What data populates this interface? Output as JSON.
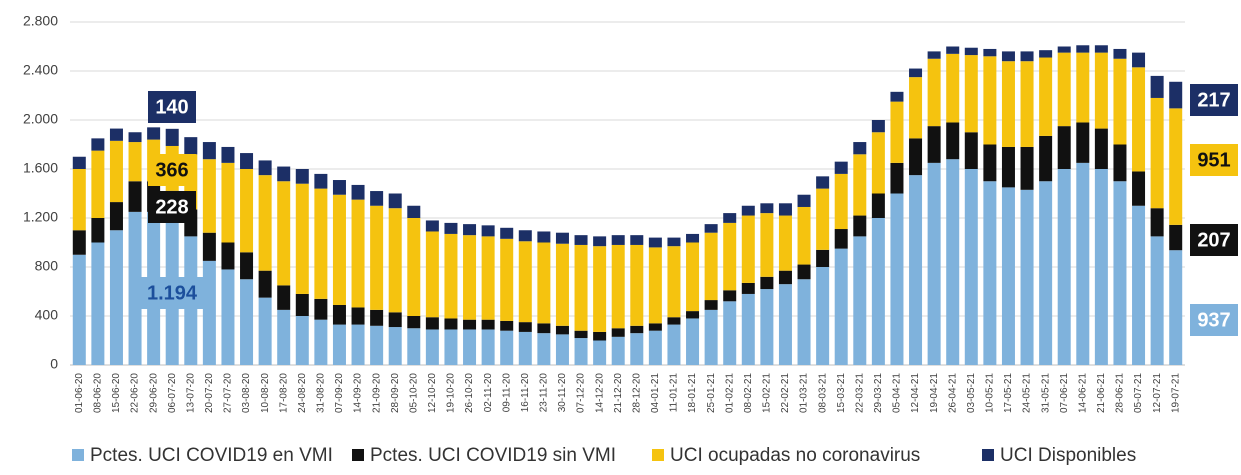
{
  "chart_data": {
    "type": "bar",
    "stacked": true,
    "grid": true,
    "categories": [
      "01-06-20",
      "08-06-20",
      "15-06-20",
      "22-06-20",
      "29-06-20",
      "06-07-20",
      "13-07-20",
      "20-07-20",
      "27-07-20",
      "03-08-20",
      "10-08-20",
      "17-08-20",
      "24-08-20",
      "31-08-20",
      "07-09-20",
      "14-09-20",
      "21-09-20",
      "28-09-20",
      "05-10-20",
      "12-10-20",
      "19-10-20",
      "26-10-20",
      "02-11-20",
      "09-11-20",
      "16-11-20",
      "23-11-20",
      "30-11-20",
      "07-12-20",
      "14-12-20",
      "21-12-20",
      "28-12-20",
      "04-01-21",
      "11-01-21",
      "18-01-21",
      "25-01-21",
      "01-02-21",
      "08-02-21",
      "15-02-21",
      "22-02-21",
      "01-03-21",
      "08-03-21",
      "15-03-21",
      "22-03-21",
      "29-03-21",
      "05-04-21",
      "12-04-21",
      "19-04-21",
      "26-04-21",
      "03-05-21",
      "10-05-21",
      "17-05-21",
      "24-05-21",
      "31-05-21",
      "07-06-21",
      "14-06-21",
      "21-06-21",
      "28-06-21",
      "05-07-21",
      "12-07-21",
      "19-07-21"
    ],
    "series": [
      {
        "name": "Pctes. UCI COVID19 en VMI",
        "color": "#7fb2dc",
        "label_color": "#ffffff",
        "values": [
          900,
          1000,
          1100,
          1250,
          1250,
          1194,
          1050,
          850,
          780,
          700,
          550,
          450,
          400,
          370,
          330,
          330,
          320,
          310,
          300,
          290,
          290,
          290,
          290,
          280,
          270,
          260,
          250,
          220,
          200,
          230,
          260,
          280,
          330,
          380,
          450,
          520,
          580,
          620,
          660,
          700,
          800,
          950,
          1050,
          1200,
          1400,
          1550,
          1650,
          1680,
          1600,
          1500,
          1450,
          1430,
          1500,
          1600,
          1650,
          1600,
          1500,
          1300,
          1050,
          937
        ],
        "value_labels": [
          null,
          null,
          null,
          null,
          null,
          "1.194",
          null,
          null,
          null,
          null,
          null,
          null,
          null,
          null,
          null,
          null,
          null,
          null,
          null,
          null,
          null,
          null,
          null,
          null,
          null,
          null,
          null,
          null,
          null,
          null,
          null,
          null,
          null,
          null,
          null,
          null,
          null,
          null,
          null,
          null,
          null,
          null,
          null,
          null,
          null,
          null,
          null,
          null,
          null,
          null,
          null,
          null,
          null,
          null,
          null,
          null,
          null,
          null,
          null,
          "937"
        ]
      },
      {
        "name": "Pctes. UCI COVID19 sin VMI",
        "color": "#111111",
        "label_color": "#ffffff",
        "values": [
          200,
          200,
          230,
          250,
          250,
          228,
          220,
          230,
          220,
          220,
          220,
          200,
          180,
          170,
          160,
          140,
          130,
          120,
          100,
          100,
          90,
          80,
          80,
          80,
          80,
          80,
          70,
          60,
          70,
          70,
          60,
          60,
          60,
          60,
          80,
          90,
          90,
          100,
          110,
          120,
          140,
          160,
          170,
          200,
          250,
          300,
          300,
          300,
          300,
          300,
          330,
          350,
          370,
          350,
          330,
          330,
          300,
          280,
          230,
          207
        ],
        "value_labels": [
          null,
          null,
          null,
          null,
          null,
          "228",
          null,
          null,
          null,
          null,
          null,
          null,
          null,
          null,
          null,
          null,
          null,
          null,
          null,
          null,
          null,
          null,
          null,
          null,
          null,
          null,
          null,
          null,
          null,
          null,
          null,
          null,
          null,
          null,
          null,
          null,
          null,
          null,
          null,
          null,
          null,
          null,
          null,
          null,
          null,
          null,
          null,
          null,
          null,
          null,
          null,
          null,
          null,
          null,
          null,
          null,
          null,
          null,
          null,
          "207"
        ]
      },
      {
        "name": "UCI ocupadas no coronavirus",
        "color": "#f5c30f",
        "label_color": "#111111",
        "values": [
          500,
          550,
          500,
          320,
          340,
          366,
          450,
          600,
          650,
          680,
          780,
          850,
          900,
          900,
          900,
          880,
          850,
          850,
          800,
          700,
          690,
          690,
          680,
          670,
          660,
          660,
          670,
          700,
          700,
          680,
          660,
          620,
          580,
          560,
          550,
          550,
          550,
          520,
          450,
          470,
          500,
          450,
          500,
          500,
          500,
          500,
          550,
          560,
          630,
          720,
          700,
          700,
          640,
          600,
          570,
          620,
          700,
          850,
          900,
          951
        ],
        "value_labels": [
          null,
          null,
          null,
          null,
          null,
          "366",
          null,
          null,
          null,
          null,
          null,
          null,
          null,
          null,
          null,
          null,
          null,
          null,
          null,
          null,
          null,
          null,
          null,
          null,
          null,
          null,
          null,
          null,
          null,
          null,
          null,
          null,
          null,
          null,
          null,
          null,
          null,
          null,
          null,
          null,
          null,
          null,
          null,
          null,
          null,
          null,
          null,
          null,
          null,
          null,
          null,
          null,
          null,
          null,
          null,
          null,
          null,
          null,
          null,
          "951"
        ]
      },
      {
        "name": "UCI Disponibles",
        "color": "#1c2f66",
        "label_color": "#ffffff",
        "values": [
          100,
          100,
          100,
          80,
          100,
          140,
          140,
          140,
          130,
          130,
          120,
          120,
          120,
          120,
          120,
          120,
          120,
          120,
          100,
          90,
          90,
          90,
          90,
          90,
          90,
          90,
          90,
          80,
          80,
          80,
          80,
          80,
          70,
          70,
          70,
          80,
          80,
          80,
          100,
          100,
          100,
          100,
          100,
          100,
          80,
          70,
          60,
          60,
          60,
          60,
          80,
          80,
          60,
          50,
          60,
          60,
          80,
          120,
          180,
          217
        ],
        "value_labels": [
          null,
          null,
          null,
          null,
          null,
          "140",
          null,
          null,
          null,
          null,
          null,
          null,
          null,
          null,
          null,
          null,
          null,
          null,
          null,
          null,
          null,
          null,
          null,
          null,
          null,
          null,
          null,
          null,
          null,
          null,
          null,
          null,
          null,
          null,
          null,
          null,
          null,
          null,
          null,
          null,
          null,
          null,
          null,
          null,
          null,
          null,
          null,
          null,
          null,
          null,
          null,
          null,
          null,
          null,
          null,
          null,
          null,
          null,
          null,
          "217"
        ]
      }
    ],
    "ylim": [
      0,
      2800
    ],
    "yticks": [
      0,
      400,
      800,
      {
        "value": 1200,
        "label": "1.200"
      },
      {
        "value": 1600,
        "label": "1.600"
      },
      {
        "value": 2000,
        "label": "2.000"
      },
      {
        "value": 2400,
        "label": "2.400"
      },
      {
        "value": 2800,
        "label": "2.800"
      }
    ]
  }
}
